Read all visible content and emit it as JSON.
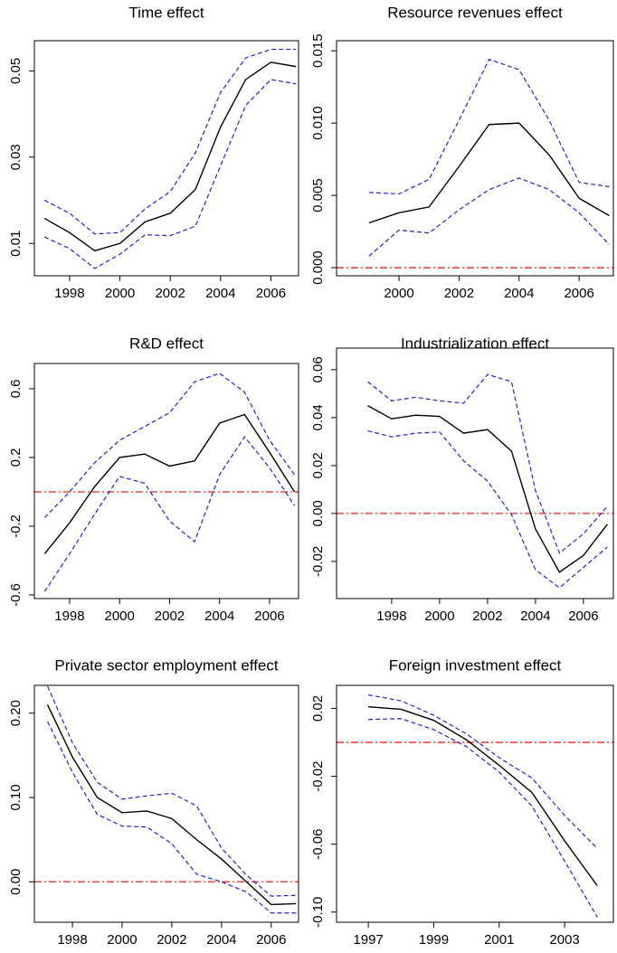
{
  "chart_data": [
    {
      "type": "line",
      "title": "Time effect",
      "x": [
        1997,
        1998,
        1999,
        2000,
        2001,
        2002,
        2003,
        2004,
        2005,
        2006,
        2007
      ],
      "series": [
        {
          "color": "#000000",
          "values": [
            0.0158,
            0.0125,
            0.0083,
            0.01,
            0.015,
            0.017,
            0.0225,
            0.037,
            0.048,
            0.052,
            0.051
          ]
        },
        {
          "color": "#2323c8",
          "values": [
            0.02,
            0.017,
            0.0122,
            0.0125,
            0.018,
            0.022,
            0.031,
            0.045,
            0.053,
            0.055,
            0.055
          ]
        },
        {
          "color": "#2323c8",
          "values": [
            0.0115,
            0.0088,
            0.0042,
            0.0075,
            0.012,
            0.0118,
            0.014,
            0.028,
            0.042,
            0.048,
            0.047
          ]
        }
      ],
      "xlim": [
        1996.6,
        2007.1
      ],
      "ylim": [
        0.0025,
        0.057
      ],
      "xticks": [
        1998,
        2000,
        2002,
        2004,
        2006
      ],
      "yticks": [
        0.01,
        0.03,
        0.05
      ]
    },
    {
      "type": "line",
      "title": "Resource revenues effect",
      "x": [
        1999,
        2000,
        2001,
        2002,
        2003,
        2004,
        2005,
        2006,
        2007
      ],
      "series": [
        {
          "color": "#000000",
          "values": [
            0.0031,
            0.0038,
            0.0042,
            0.007,
            0.0099,
            0.01,
            0.0078,
            0.0048,
            0.0036
          ]
        },
        {
          "color": "#2323c8",
          "values": [
            0.0052,
            0.0051,
            0.0061,
            0.0102,
            0.0144,
            0.0137,
            0.0102,
            0.0059,
            0.0056
          ]
        },
        {
          "color": "#2323c8",
          "values": [
            0.0008,
            0.0026,
            0.0024,
            0.004,
            0.0054,
            0.0062,
            0.0054,
            0.0038,
            0.0016
          ]
        }
      ],
      "reference_line": 0,
      "reference_color": "#e8231e",
      "xlim": [
        1997.92,
        2007.14
      ],
      "ylim": [
        -0.00056,
        0.0157
      ],
      "xticks": [
        2000,
        2002,
        2004,
        2006
      ],
      "yticks": [
        {
          "value": 0,
          "label": "0.000"
        },
        0.005,
        {
          "value": 0.01,
          "label": "0.010"
        },
        0.015
      ]
    },
    {
      "type": "line",
      "title": "R&D effect",
      "x": [
        1997,
        1998,
        1999,
        2000,
        2001,
        2002,
        2003,
        2004,
        2005,
        2006,
        2007
      ],
      "series": [
        {
          "color": "#000000",
          "values": [
            -0.36,
            -0.18,
            0.03,
            0.2,
            0.22,
            0.15,
            0.18,
            0.4,
            0.45,
            0.23,
            0.0
          ]
        },
        {
          "color": "#2323c8",
          "values": [
            -0.15,
            0.0,
            0.17,
            0.3,
            0.38,
            0.46,
            0.64,
            0.69,
            0.58,
            0.3,
            0.1
          ]
        },
        {
          "color": "#2323c8",
          "values": [
            -0.58,
            -0.36,
            -0.13,
            0.09,
            0.05,
            -0.17,
            -0.29,
            0.1,
            0.32,
            0.14,
            -0.08
          ]
        }
      ],
      "reference_line": 0,
      "reference_color": "#e8231e",
      "xlim": [
        1996.59,
        2007.16
      ],
      "ylim": [
        -0.621,
        0.747
      ],
      "xticks": [
        1998,
        2000,
        2002,
        2004,
        2006
      ],
      "yticks": [
        -0.6,
        -0.2,
        0.2,
        0.6
      ]
    },
    {
      "type": "line",
      "title": "Industrialization effect",
      "x": [
        1997,
        1998,
        1999,
        2000,
        2001,
        2002,
        2003,
        2004,
        2005,
        2006,
        2007
      ],
      "series": [
        {
          "color": "#000000",
          "values": [
            0.045,
            0.0395,
            0.041,
            0.0405,
            0.0335,
            0.035,
            0.026,
            -0.0065,
            -0.0245,
            -0.0175,
            -0.0045
          ]
        },
        {
          "color": "#2323c8",
          "values": [
            0.055,
            0.047,
            0.0485,
            0.047,
            0.046,
            0.058,
            0.055,
            0.0095,
            -0.0165,
            -0.0085,
            0.003
          ]
        },
        {
          "color": "#2323c8",
          "values": [
            0.0345,
            0.032,
            0.0335,
            0.034,
            0.022,
            0.0135,
            -0.0005,
            -0.0235,
            -0.031,
            -0.0225,
            -0.014
          ]
        }
      ],
      "reference_line": 0,
      "reference_color": "#e8231e",
      "xlim": [
        1995.7,
        2007.25
      ],
      "ylim": [
        -0.0355,
        0.069
      ],
      "xticks": [
        1998,
        2000,
        2002,
        2004,
        2006
      ],
      "yticks": [
        -0.02,
        {
          "value": 0,
          "label": "0.00"
        },
        0.02,
        0.04,
        0.06
      ]
    },
    {
      "type": "line",
      "title": "Private sector employment effect",
      "x": [
        1997,
        1998,
        1999,
        2000,
        2001,
        2002,
        2003,
        2004,
        2005,
        2006,
        2007
      ],
      "series": [
        {
          "color": "#000000",
          "values": [
            0.21,
            0.148,
            0.1,
            0.082,
            0.084,
            0.075,
            0.05,
            0.027,
            0.0,
            -0.027,
            -0.026
          ]
        },
        {
          "color": "#2323c8",
          "values": [
            0.232,
            0.165,
            0.118,
            0.098,
            0.102,
            0.105,
            0.09,
            0.04,
            0.008,
            -0.017,
            -0.016
          ]
        },
        {
          "color": "#2323c8",
          "values": [
            0.19,
            0.13,
            0.08,
            0.066,
            0.065,
            0.045,
            0.009,
            0.0,
            -0.012,
            -0.037,
            -0.037
          ]
        }
      ],
      "reference_line": 0,
      "reference_color": "#e8231e",
      "xlim": [
        1996.47,
        2007.1
      ],
      "ylim": [
        -0.048,
        0.233
      ],
      "xticks": [
        1998,
        2000,
        2002,
        2004,
        2006
      ],
      "yticks": [
        {
          "value": 0,
          "label": "0.00"
        },
        {
          "value": 0.1,
          "label": "0.10"
        },
        {
          "value": 0.2,
          "label": "0.20"
        }
      ]
    },
    {
      "type": "line",
      "title": "Foreign investment effect",
      "x": [
        1997,
        1998,
        1999,
        2000,
        2001,
        2002,
        2003,
        2004
      ],
      "series": [
        {
          "color": "#000000",
          "values": [
            0.021,
            0.0195,
            0.013,
            0.0015,
            -0.0135,
            -0.0295,
            -0.058,
            -0.0845
          ]
        },
        {
          "color": "#2323c8",
          "values": [
            0.028,
            0.0245,
            0.016,
            0.005,
            -0.009,
            -0.021,
            -0.043,
            -0.0625
          ]
        },
        {
          "color": "#2323c8",
          "values": [
            0.0135,
            0.014,
            0.0075,
            -0.0025,
            -0.0175,
            -0.0375,
            -0.07,
            -0.103
          ]
        }
      ],
      "reference_line": 0,
      "reference_color": "#e8231e",
      "xlim": [
        1996.03,
        2004.49
      ],
      "ylim": [
        -0.106,
        0.0336
      ],
      "xticks": [
        1997,
        1999,
        2001,
        2003
      ],
      "yticks": [
        {
          "value": -0.1,
          "label": "-0.10"
        },
        -0.06,
        -0.02,
        0.02
      ]
    }
  ]
}
